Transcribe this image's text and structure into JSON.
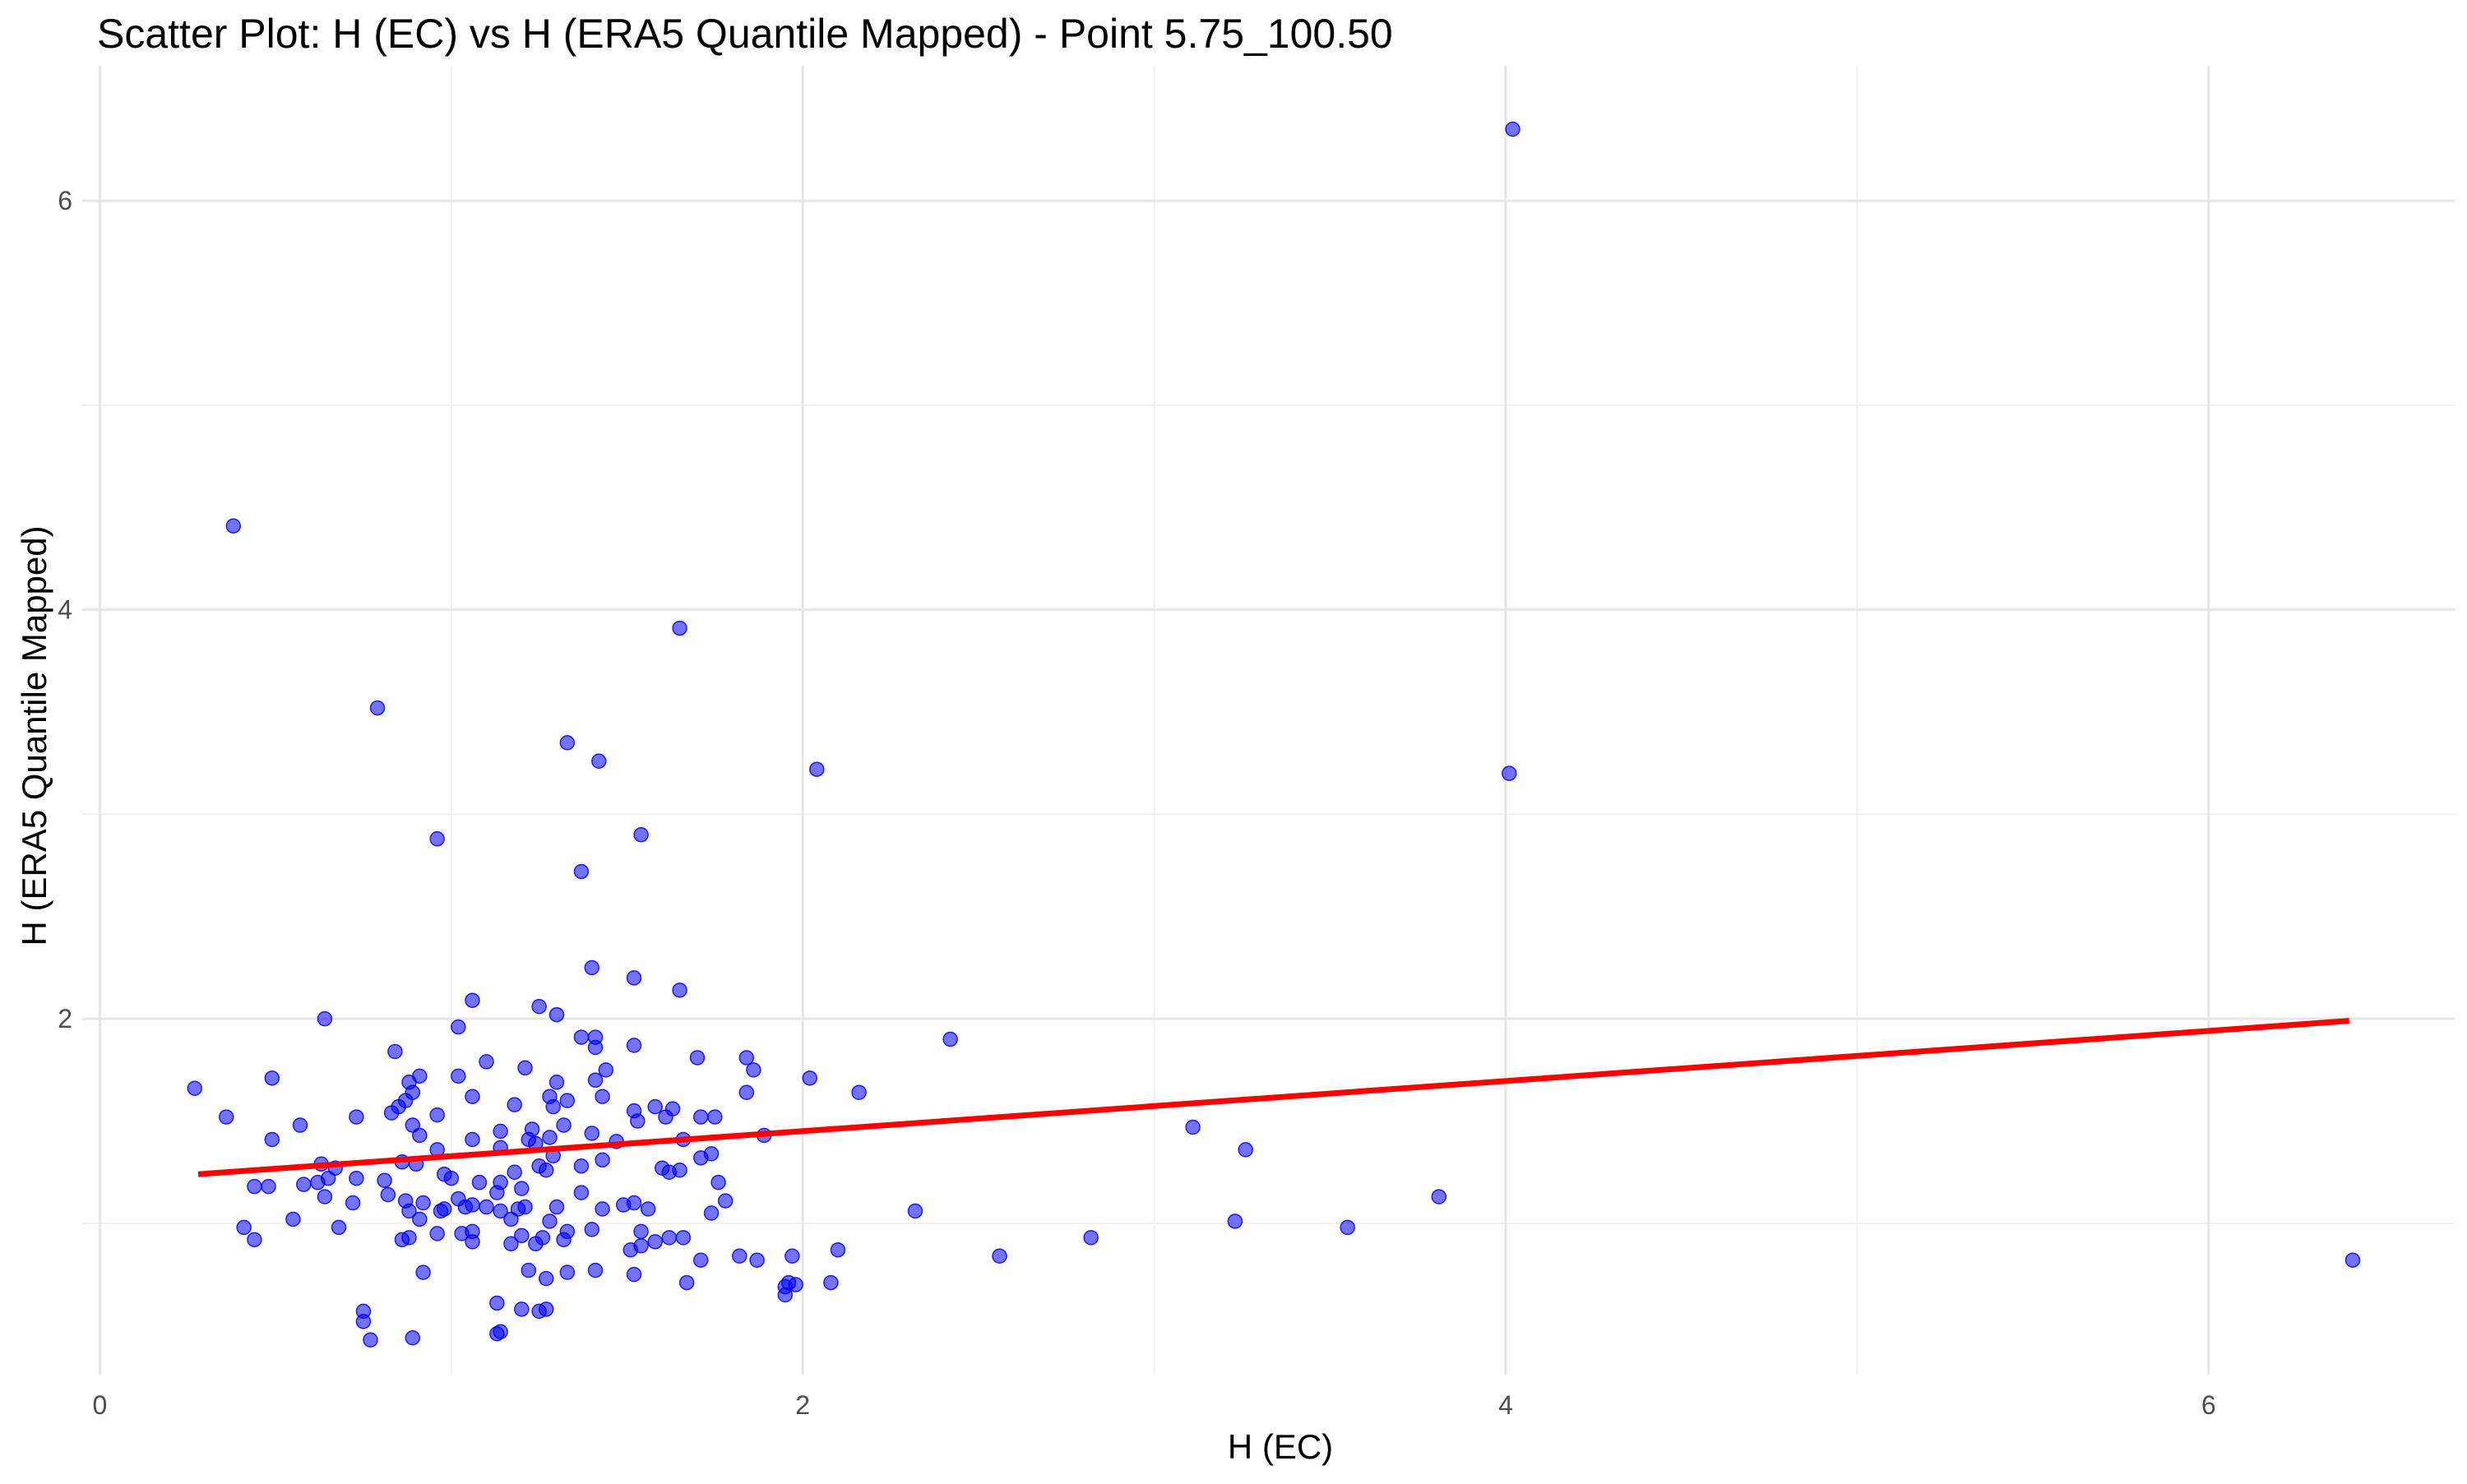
{
  "chart_data": {
    "type": "scatter",
    "title": "Scatter Plot: H (EC) vs H (ERA5 Quantile Mapped) - Point 5.75_100.50",
    "xlabel": "H (EC)",
    "ylabel": "H (ERA5 Quantile Mapped)",
    "xlim": [
      -0.05,
      6.7
    ],
    "ylim": [
      0.26,
      6.66
    ],
    "x_ticks": [
      0,
      2,
      4,
      6
    ],
    "y_ticks": [
      2,
      4,
      6
    ],
    "x_tick_labels": [
      "0",
      "2",
      "4",
      "6"
    ],
    "y_tick_labels": [
      "2",
      "4",
      "6"
    ],
    "grid": true,
    "point_color": "#0000ff",
    "point_opacity": 0.55,
    "trend_color": "#ff0000",
    "trend_line": {
      "x": [
        0.28,
        6.4
      ],
      "y": [
        1.24,
        1.99
      ]
    },
    "points": [
      [
        4.02,
        6.35
      ],
      [
        0.38,
        4.41
      ],
      [
        1.65,
        3.91
      ],
      [
        0.79,
        3.52
      ],
      [
        1.33,
        3.35
      ],
      [
        1.42,
        3.26
      ],
      [
        2.04,
        3.22
      ],
      [
        4.01,
        3.2
      ],
      [
        0.96,
        2.88
      ],
      [
        1.54,
        2.9
      ],
      [
        1.37,
        2.72
      ],
      [
        1.4,
        2.25
      ],
      [
        1.52,
        2.2
      ],
      [
        1.65,
        2.14
      ],
      [
        1.06,
        2.09
      ],
      [
        1.25,
        2.06
      ],
      [
        0.64,
        2.0
      ],
      [
        1.3,
        2.02
      ],
      [
        1.02,
        1.96
      ],
      [
        1.37,
        1.91
      ],
      [
        1.41,
        1.91
      ],
      [
        2.42,
        1.9
      ],
      [
        1.41,
        1.86
      ],
      [
        1.52,
        1.87
      ],
      [
        0.84,
        1.84
      ],
      [
        1.7,
        1.81
      ],
      [
        1.84,
        1.81
      ],
      [
        1.1,
        1.79
      ],
      [
        1.21,
        1.76
      ],
      [
        1.44,
        1.75
      ],
      [
        1.86,
        1.75
      ],
      [
        0.49,
        1.71
      ],
      [
        0.91,
        1.72
      ],
      [
        1.02,
        1.72
      ],
      [
        2.02,
        1.71
      ],
      [
        1.41,
        1.7
      ],
      [
        1.3,
        1.69
      ],
      [
        0.88,
        1.69
      ],
      [
        0.27,
        1.66
      ],
      [
        0.89,
        1.64
      ],
      [
        1.06,
        1.62
      ],
      [
        1.43,
        1.62
      ],
      [
        1.33,
        1.6
      ],
      [
        2.16,
        1.64
      ],
      [
        1.84,
        1.64
      ],
      [
        1.28,
        1.62
      ],
      [
        0.87,
        1.6
      ],
      [
        1.58,
        1.57
      ],
      [
        1.63,
        1.56
      ],
      [
        1.18,
        1.58
      ],
      [
        0.85,
        1.57
      ],
      [
        1.29,
        1.57
      ],
      [
        1.52,
        1.55
      ],
      [
        0.83,
        1.54
      ],
      [
        0.96,
        1.53
      ],
      [
        1.71,
        1.52
      ],
      [
        1.61,
        1.52
      ],
      [
        1.75,
        1.52
      ],
      [
        0.36,
        1.52
      ],
      [
        0.73,
        1.52
      ],
      [
        1.53,
        1.5
      ],
      [
        0.57,
        1.48
      ],
      [
        0.89,
        1.48
      ],
      [
        1.32,
        1.48
      ],
      [
        3.11,
        1.47
      ],
      [
        1.23,
        1.46
      ],
      [
        1.14,
        1.45
      ],
      [
        0.91,
        1.43
      ],
      [
        1.4,
        1.44
      ],
      [
        1.89,
        1.43
      ],
      [
        1.28,
        1.42
      ],
      [
        0.49,
        1.41
      ],
      [
        1.06,
        1.41
      ],
      [
        1.47,
        1.4
      ],
      [
        1.22,
        1.41
      ],
      [
        1.66,
        1.41
      ],
      [
        1.24,
        1.39
      ],
      [
        1.14,
        1.37
      ],
      [
        0.96,
        1.36
      ],
      [
        3.26,
        1.36
      ],
      [
        1.74,
        1.34
      ],
      [
        1.29,
        1.33
      ],
      [
        1.71,
        1.32
      ],
      [
        1.43,
        1.31
      ],
      [
        0.86,
        1.3
      ],
      [
        0.63,
        1.29
      ],
      [
        0.9,
        1.29
      ],
      [
        1.25,
        1.28
      ],
      [
        1.37,
        1.28
      ],
      [
        1.6,
        1.27
      ],
      [
        0.67,
        1.27
      ],
      [
        1.27,
        1.26
      ],
      [
        0.98,
        1.24
      ],
      [
        1.65,
        1.26
      ],
      [
        1.62,
        1.25
      ],
      [
        0.65,
        1.22
      ],
      [
        1.18,
        1.25
      ],
      [
        0.73,
        1.22
      ],
      [
        1.0,
        1.22
      ],
      [
        1.08,
        1.2
      ],
      [
        0.81,
        1.21
      ],
      [
        1.76,
        1.2
      ],
      [
        1.14,
        1.2
      ],
      [
        0.58,
        1.19
      ],
      [
        0.62,
        1.2
      ],
      [
        0.44,
        1.18
      ],
      [
        0.48,
        1.18
      ],
      [
        1.2,
        1.17
      ],
      [
        1.37,
        1.15
      ],
      [
        1.13,
        1.15
      ],
      [
        0.82,
        1.14
      ],
      [
        0.64,
        1.13
      ],
      [
        1.52,
        1.1
      ],
      [
        3.81,
        1.13
      ],
      [
        1.78,
        1.11
      ],
      [
        0.87,
        1.11
      ],
      [
        1.02,
        1.12
      ],
      [
        0.92,
        1.1
      ],
      [
        0.72,
        1.1
      ],
      [
        1.49,
        1.09
      ],
      [
        1.06,
        1.09
      ],
      [
        1.1,
        1.08
      ],
      [
        1.21,
        1.08
      ],
      [
        1.3,
        1.08
      ],
      [
        1.14,
        1.06
      ],
      [
        0.98,
        1.07
      ],
      [
        1.04,
        1.08
      ],
      [
        1.19,
        1.07
      ],
      [
        1.56,
        1.07
      ],
      [
        0.97,
        1.06
      ],
      [
        1.43,
        1.07
      ],
      [
        0.88,
        1.06
      ],
      [
        2.32,
        1.06
      ],
      [
        1.74,
        1.05
      ],
      [
        0.91,
        1.02
      ],
      [
        1.17,
        1.02
      ],
      [
        3.23,
        1.01
      ],
      [
        0.55,
        1.02
      ],
      [
        1.28,
        1.01
      ],
      [
        1.4,
        0.97
      ],
      [
        0.41,
        0.98
      ],
      [
        1.33,
        0.96
      ],
      [
        1.06,
        0.96
      ],
      [
        0.68,
        0.98
      ],
      [
        1.54,
        0.96
      ],
      [
        1.03,
        0.95
      ],
      [
        3.55,
        0.98
      ],
      [
        0.88,
        0.93
      ],
      [
        0.96,
        0.95
      ],
      [
        1.2,
        0.94
      ],
      [
        0.86,
        0.92
      ],
      [
        1.62,
        0.93
      ],
      [
        1.66,
        0.93
      ],
      [
        1.26,
        0.93
      ],
      [
        1.32,
        0.92
      ],
      [
        2.82,
        0.93
      ],
      [
        0.44,
        0.92
      ],
      [
        1.06,
        0.91
      ],
      [
        1.58,
        0.91
      ],
      [
        1.17,
        0.9
      ],
      [
        1.24,
        0.9
      ],
      [
        1.54,
        0.89
      ],
      [
        1.51,
        0.87
      ],
      [
        1.82,
        0.84
      ],
      [
        2.1,
        0.87
      ],
      [
        1.97,
        0.84
      ],
      [
        1.87,
        0.82
      ],
      [
        2.56,
        0.84
      ],
      [
        1.71,
        0.82
      ],
      [
        6.41,
        0.82
      ],
      [
        0.92,
        0.76
      ],
      [
        1.41,
        0.77
      ],
      [
        1.22,
        0.77
      ],
      [
        1.33,
        0.76
      ],
      [
        1.52,
        0.75
      ],
      [
        1.27,
        0.73
      ],
      [
        1.67,
        0.71
      ],
      [
        1.96,
        0.71
      ],
      [
        2.08,
        0.71
      ],
      [
        1.95,
        0.69
      ],
      [
        1.98,
        0.7
      ],
      [
        1.95,
        0.65
      ],
      [
        1.13,
        0.61
      ],
      [
        1.27,
        0.58
      ],
      [
        1.2,
        0.58
      ],
      [
        0.75,
        0.57
      ],
      [
        1.25,
        0.57
      ],
      [
        0.75,
        0.52
      ],
      [
        1.13,
        0.46
      ],
      [
        1.14,
        0.47
      ],
      [
        0.77,
        0.43
      ],
      [
        0.89,
        0.44
      ]
    ]
  }
}
